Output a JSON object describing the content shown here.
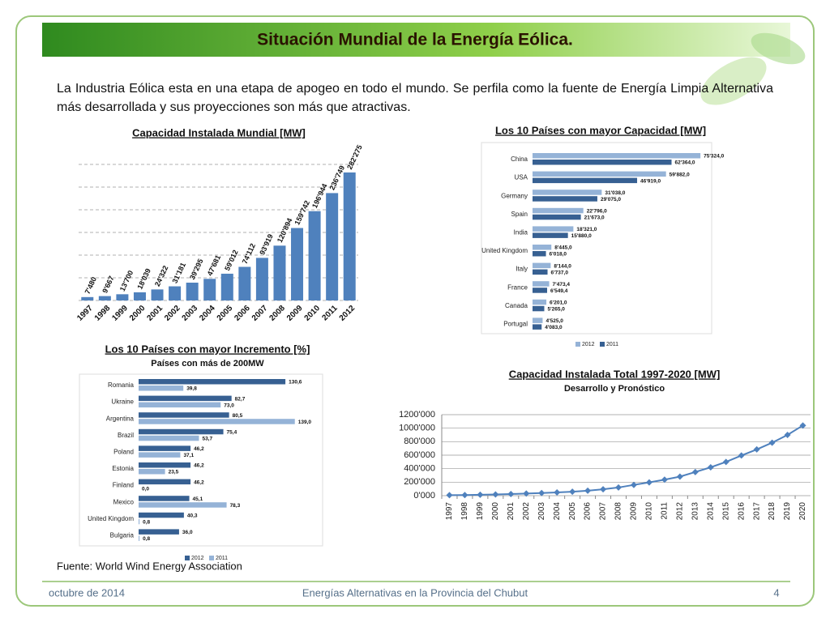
{
  "header": {
    "title": "Situación Mundial de la Energía Eólica."
  },
  "intro": "La Industria Eólica esta en una etapa de apogeo en todo el mundo. Se perfila como la fuente de Energía Limpia Alternativa más desarrollada y sus proyecciones son más que atractivas.",
  "chart_data": [
    {
      "type": "bar",
      "title": "Capacidad Instalada Mundial [MW]",
      "categories": [
        "1997",
        "1998",
        "1999",
        "2000",
        "2001",
        "2002",
        "2003",
        "2004",
        "2005",
        "2006",
        "2007",
        "2008",
        "2009",
        "2010",
        "2011",
        "2012"
      ],
      "values": [
        7480,
        9667,
        13700,
        18039,
        24322,
        31181,
        39295,
        47681,
        59012,
        74112,
        93919,
        120894,
        159742,
        196944,
        236749,
        282275
      ],
      "value_labels": [
        "7'480",
        "9'667",
        "13'700",
        "18'039",
        "24'322",
        "31'181",
        "39'295",
        "47'681",
        "59'012",
        "74'112",
        "93'919",
        "120'894",
        "159'742",
        "196'944",
        "236'749",
        "282'275"
      ],
      "color": "#4f81bd",
      "ylim": [
        0,
        300000
      ],
      "yticks": [
        0,
        50000,
        100000,
        150000,
        200000,
        250000,
        300000
      ],
      "grid": true
    },
    {
      "type": "hbar",
      "title": "Los 10 Países con mayor Capacidad [MW]",
      "categories": [
        "China",
        "USA",
        "Germany",
        "Spain",
        "India",
        "United Kingdom",
        "Italy",
        "France",
        "Canada",
        "Portugal"
      ],
      "series": [
        {
          "name": "2012",
          "color": "#95b3d7",
          "values": [
            75324.0,
            59882.0,
            31038.0,
            22796.0,
            18321.0,
            8445.0,
            8144.0,
            7473.4,
            6201.0,
            4525.0
          ],
          "value_labels": [
            "75'324,0",
            "59'882,0",
            "31'038,0",
            "22'796,0",
            "18'321,0",
            "8'445,0",
            "8'144,0",
            "7'473,4",
            "6'201,0",
            "4'525,0"
          ]
        },
        {
          "name": "2011",
          "color": "#376092",
          "values": [
            62364.0,
            46919.0,
            29075.0,
            21673.0,
            15880.0,
            6018.0,
            6737.0,
            6549.4,
            5265.0,
            4083.0
          ],
          "value_labels": [
            "62'364,0",
            "46'919,0",
            "29'075,0",
            "21'673,0",
            "15'880,0",
            "6'018,0",
            "6'737,0",
            "6'549,4",
            "5'265,0",
            "4'083,0"
          ]
        }
      ],
      "xlim": [
        0,
        80000
      ]
    },
    {
      "type": "hbar",
      "title": "Los 10 Países con mayor Incremento [%]",
      "subtitle": "Países con más de 200MW",
      "categories": [
        "Romania",
        "Ukraine",
        "Argentina",
        "Brazil",
        "Poland",
        "Estonia",
        "Finland",
        "Mexico",
        "United Kingdom",
        "Bulgaria"
      ],
      "series": [
        {
          "name": "2012",
          "color": "#376092",
          "values": [
            130.6,
            82.7,
            80.5,
            75.4,
            46.2,
            46.2,
            46.2,
            45.1,
            40.3,
            36.0
          ],
          "value_labels": [
            "130,6",
            "82,7",
            "80,5",
            "75,4",
            "46,2",
            "46,2",
            "46,2",
            "45,1",
            "40,3",
            "36,0"
          ]
        },
        {
          "name": "2011",
          "color": "#95b3d7",
          "values": [
            39.8,
            73.0,
            139.0,
            53.7,
            37.1,
            23.5,
            0.0,
            78.3,
            0.8,
            0.8
          ],
          "value_labels": [
            "39,8",
            "73,0",
            "139,0",
            "53,7",
            "37,1",
            "23,5",
            "0,0",
            "78,3",
            "0,8",
            "0,8"
          ]
        }
      ],
      "xlim": [
        0,
        150
      ]
    },
    {
      "type": "line",
      "title": "Capacidad Instalada Total 1997-2020 [MW]",
      "subtitle": "Desarrollo y Pronóstico",
      "categories": [
        "1997",
        "1998",
        "1999",
        "2000",
        "2001",
        "2002",
        "2003",
        "2004",
        "2005",
        "2006",
        "2007",
        "2008",
        "2009",
        "2010",
        "2011",
        "2012",
        "2013",
        "2014",
        "2015",
        "2016",
        "2017",
        "2018",
        "2019",
        "2020"
      ],
      "values": [
        7480,
        9667,
        13700,
        18039,
        24322,
        31181,
        39295,
        47681,
        59012,
        74112,
        93919,
        120894,
        159742,
        196944,
        236749,
        282275,
        350000,
        420000,
        500000,
        595000,
        685000,
        785000,
        900000,
        1040000
      ],
      "color": "#4f81bd",
      "ylim": [
        0,
        1200000
      ],
      "yticks": [
        {
          "value": 0,
          "label": "0'000"
        },
        {
          "value": 200000,
          "label": "200'000"
        },
        {
          "value": 400000,
          "label": "400'000"
        },
        {
          "value": 600000,
          "label": "600'000"
        },
        {
          "value": 800000,
          "label": "800'000"
        },
        {
          "value": 1000000,
          "label": "1000'000"
        },
        {
          "value": 1200000,
          "label": "1200'000"
        }
      ],
      "grid": true
    }
  ],
  "source": "Fuente: World Wind Energy Association",
  "footer": {
    "date": "octubre de 2014",
    "center": "Energías Alternativas en la Provincia del Chubut",
    "page": "4"
  }
}
